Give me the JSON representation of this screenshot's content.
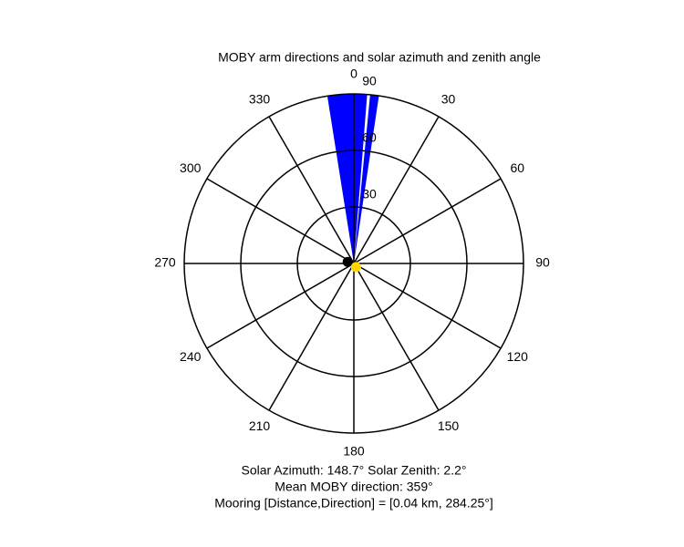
{
  "chart_data": {
    "type": "polar",
    "title": "MOBY arm directions and solar azimuth and zenith angle",
    "rlim": [
      0,
      90
    ],
    "rticks": [
      30,
      60,
      90
    ],
    "thetaticks": [
      0,
      30,
      60,
      90,
      120,
      150,
      180,
      210,
      240,
      270,
      300,
      330
    ],
    "wedges": [
      {
        "from": 351,
        "to": 4.5,
        "color": "#0000ff"
      },
      {
        "from": 5.5,
        "to": 8.5,
        "color": "#0000ff"
      }
    ],
    "points": [
      {
        "theta": 284.25,
        "r": 3.4,
        "color": "#000000"
      },
      {
        "theta": 148.7,
        "r": 2.2,
        "color": "#ffd700"
      }
    ],
    "annotations": [
      "Solar Azimuth: 148.7°   Solar Zenith: 2.2°",
      "Mean MOBY direction: 359°",
      "Mooring [Distance,Direction] = [0.04 km, 284.25°]"
    ]
  }
}
